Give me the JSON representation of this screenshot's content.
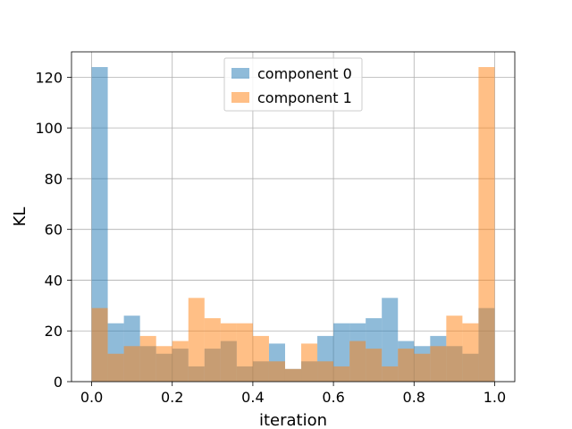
{
  "chart_data": {
    "type": "bar",
    "xlabel": "iteration",
    "ylabel": "KL",
    "xlim": [
      -0.05,
      1.05
    ],
    "ylim": [
      0,
      130
    ],
    "x_ticks": [
      0.0,
      0.2,
      0.4,
      0.6,
      0.8,
      1.0
    ],
    "x_tick_labels": [
      "0.0",
      "0.2",
      "0.4",
      "0.6",
      "0.8",
      "1.0"
    ],
    "y_ticks": [
      0,
      20,
      40,
      60,
      80,
      100,
      120
    ],
    "y_tick_labels": [
      "0",
      "20",
      "40",
      "60",
      "80",
      "100",
      "120"
    ],
    "grid": true,
    "legend_position": "top-center",
    "bin_edges": [
      0.0,
      0.04,
      0.08,
      0.12,
      0.16,
      0.2,
      0.24,
      0.28,
      0.32,
      0.36,
      0.4,
      0.44,
      0.48,
      0.52,
      0.56,
      0.6,
      0.64,
      0.68,
      0.72,
      0.76,
      0.8,
      0.84,
      0.88,
      0.92,
      0.96,
      1.0
    ],
    "series": [
      {
        "name": "component 0",
        "color": "#1f77b4",
        "alpha": 0.5,
        "values": [
          124,
          23,
          26,
          14,
          11,
          13,
          6,
          13,
          16,
          6,
          8,
          15,
          5,
          8,
          18,
          23,
          23,
          25,
          33,
          16,
          14,
          18,
          14,
          11,
          29
        ]
      },
      {
        "name": "component 1",
        "color": "#ff7f0e",
        "alpha": 0.5,
        "values": [
          29,
          11,
          14,
          18,
          14,
          16,
          33,
          25,
          23,
          23,
          18,
          8,
          5,
          15,
          8,
          6,
          16,
          13,
          6,
          13,
          11,
          14,
          26,
          23,
          124
        ]
      }
    ]
  }
}
